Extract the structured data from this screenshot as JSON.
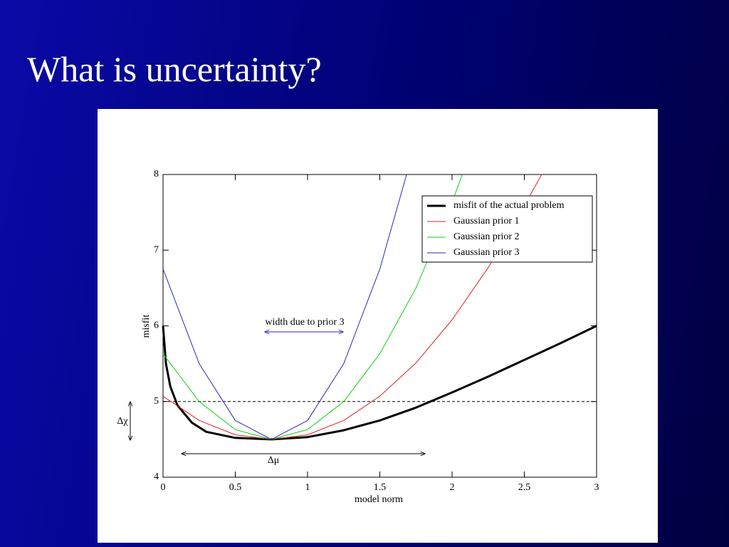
{
  "chart_data": {
    "type": "line",
    "title": "What is uncertainty?",
    "x_label": "model norm",
    "y_label": "misfit",
    "xlim": [
      0,
      3
    ],
    "ylim": [
      4,
      8
    ],
    "xticks": [
      0,
      0.5,
      1,
      1.5,
      2,
      2.5,
      3
    ],
    "yticks": [
      4,
      5,
      6,
      7,
      8
    ],
    "hline": 5,
    "legend": "upper right",
    "annotations": [
      "width due to prior 3",
      "Δχ",
      "Δμ"
    ],
    "series": [
      {
        "name": "misfit of the actual problem",
        "color": "#000000",
        "line_width": 3,
        "x": [
          0,
          0.02,
          0.05,
          0.1,
          0.2,
          0.3,
          0.5,
          0.75,
          1.0,
          1.25,
          1.5,
          1.75,
          2.0,
          2.25,
          2.5,
          2.75,
          3.0
        ],
        "values": [
          6.0,
          5.5,
          5.2,
          4.95,
          4.72,
          4.6,
          4.52,
          4.5,
          4.53,
          4.62,
          4.75,
          4.92,
          5.12,
          5.33,
          5.55,
          5.77,
          6.0
        ]
      },
      {
        "name": "Gaussian prior 1",
        "color": "#e02020",
        "line_width": 1,
        "x": [
          0,
          0.25,
          0.5,
          0.75,
          1.0,
          1.25,
          1.5,
          1.75,
          2.0,
          2.25,
          2.5,
          2.62
        ],
        "values": [
          5.07,
          4.75,
          4.56,
          4.5,
          4.56,
          4.75,
          5.07,
          5.51,
          6.08,
          6.77,
          7.59,
          8.0
        ]
      },
      {
        "name": "Gaussian prior 2",
        "color": "#10d010",
        "line_width": 1,
        "x": [
          0,
          0.25,
          0.5,
          0.75,
          1.0,
          1.25,
          1.5,
          1.75,
          2.0,
          2.07
        ],
        "values": [
          5.63,
          5.0,
          4.63,
          4.5,
          4.63,
          5.0,
          5.63,
          6.5,
          7.63,
          8.0
        ]
      },
      {
        "name": "Gaussian prior 3",
        "color": "#2828b8",
        "line_width": 1,
        "x": [
          0,
          0.25,
          0.5,
          0.75,
          1.0,
          1.25,
          1.5,
          1.685
        ],
        "values": [
          6.75,
          5.5,
          4.75,
          4.5,
          4.75,
          5.5,
          6.75,
          8.0
        ]
      }
    ]
  }
}
